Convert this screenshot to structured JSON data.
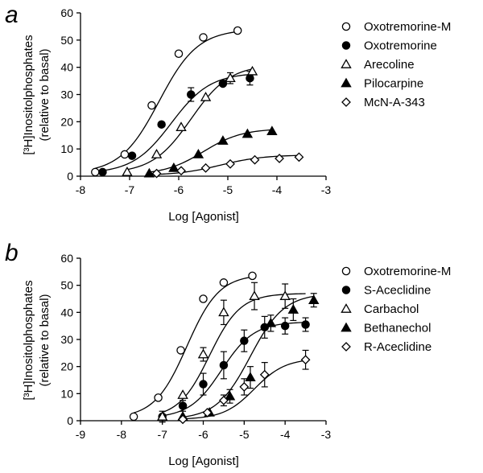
{
  "chart_data": [
    {
      "type": "scatter",
      "panel_label": "a",
      "xlabel": "Log [Agonist]",
      "ylabel_line1": "[³H]Inositolphosphates",
      "ylabel_line2": "(relative to basal)",
      "xlim": [
        -8,
        -3
      ],
      "ylim": [
        0,
        60
      ],
      "xticks": [
        -8,
        -7,
        -6,
        -5,
        -4,
        -3
      ],
      "yticks": [
        0,
        10,
        20,
        30,
        40,
        50,
        60
      ],
      "legend_position": "right",
      "series": [
        {
          "name": "Oxotremorine-M",
          "marker": "circle-open",
          "fit": {
            "bottom": 1,
            "top": 54,
            "logEC50": -6.4,
            "hill": 1.1,
            "xmin": -7.7,
            "xmax": -4.8
          },
          "points": [
            {
              "x": -7.7,
              "y": 1.5
            },
            {
              "x": -7.1,
              "y": 8
            },
            {
              "x": -6.55,
              "y": 26
            },
            {
              "x": -6.0,
              "y": 45
            },
            {
              "x": -5.5,
              "y": 51
            },
            {
              "x": -4.8,
              "y": 53.5
            }
          ]
        },
        {
          "name": "Oxotremorine",
          "marker": "circle-filled",
          "fit": {
            "bottom": 1,
            "top": 38,
            "logEC50": -6.15,
            "hill": 1.1,
            "xmin": -7.55,
            "xmax": -4.55
          },
          "points": [
            {
              "x": -7.55,
              "y": 1.5
            },
            {
              "x": -6.95,
              "y": 7.5
            },
            {
              "x": -6.35,
              "y": 19
            },
            {
              "x": -5.75,
              "y": 30,
              "err": 2.5
            },
            {
              "x": -5.1,
              "y": 34
            },
            {
              "x": -4.55,
              "y": 36,
              "err": 2.5
            }
          ]
        },
        {
          "name": "Arecoline",
          "marker": "triangle-open",
          "fit": {
            "bottom": 1,
            "top": 41,
            "logEC50": -5.75,
            "hill": 1.1,
            "xmin": -7.05,
            "xmax": -4.5
          },
          "points": [
            {
              "x": -7.05,
              "y": 1.5
            },
            {
              "x": -6.45,
              "y": 8
            },
            {
              "x": -5.95,
              "y": 18
            },
            {
              "x": -5.45,
              "y": 29
            },
            {
              "x": -4.95,
              "y": 36,
              "err": 2
            },
            {
              "x": -4.5,
              "y": 38.5
            }
          ]
        },
        {
          "name": "Pilocarpine",
          "marker": "triangle-filled",
          "fit": {
            "bottom": 0.5,
            "top": 17.5,
            "logEC50": -5.5,
            "hill": 1.1,
            "xmin": -6.6,
            "xmax": -4.1
          },
          "points": [
            {
              "x": -6.6,
              "y": 1
            },
            {
              "x": -6.1,
              "y": 3
            },
            {
              "x": -5.6,
              "y": 8
            },
            {
              "x": -5.1,
              "y": 13
            },
            {
              "x": -4.6,
              "y": 15.5
            },
            {
              "x": -4.1,
              "y": 16.5
            }
          ]
        },
        {
          "name": "McN-A-343",
          "marker": "diamond-open",
          "fit": {
            "bottom": 0.3,
            "top": 7.8,
            "logEC50": -5.15,
            "hill": 1.0,
            "xmin": -6.45,
            "xmax": -3.55
          },
          "points": [
            {
              "x": -6.45,
              "y": 1
            },
            {
              "x": -5.95,
              "y": 2
            },
            {
              "x": -5.45,
              "y": 3
            },
            {
              "x": -4.95,
              "y": 4.5
            },
            {
              "x": -4.45,
              "y": 6
            },
            {
              "x": -3.95,
              "y": 6.5
            },
            {
              "x": -3.55,
              "y": 7
            }
          ]
        }
      ]
    },
    {
      "type": "scatter",
      "panel_label": "b",
      "xlabel": "Log [Agonist]",
      "ylabel_line1": "[³H]Inositolphosphates",
      "ylabel_line2": "(relative to basal)",
      "xlim": [
        -9,
        -3
      ],
      "ylim": [
        0,
        60
      ],
      "xticks": [
        -9,
        -8,
        -7,
        -6,
        -5,
        -4,
        -3
      ],
      "yticks": [
        0,
        10,
        20,
        30,
        40,
        50,
        60
      ],
      "legend_position": "right",
      "series": [
        {
          "name": "Oxotremorine-M",
          "marker": "circle-open",
          "fit": {
            "bottom": 1,
            "top": 54,
            "logEC50": -6.4,
            "hill": 1.1,
            "xmin": -7.7,
            "xmax": -4.8
          },
          "points": [
            {
              "x": -7.7,
              "y": 1.5
            },
            {
              "x": -7.1,
              "y": 8.5
            },
            {
              "x": -6.55,
              "y": 26
            },
            {
              "x": -6.0,
              "y": 45
            },
            {
              "x": -5.5,
              "y": 51
            },
            {
              "x": -4.8,
              "y": 53.5
            }
          ]
        },
        {
          "name": "S-Aceclidine",
          "marker": "circle-filled",
          "fit": {
            "bottom": 1,
            "top": 36.5,
            "logEC50": -5.55,
            "hill": 1.1,
            "xmin": -7.0,
            "xmax": -3.5
          },
          "points": [
            {
              "x": -7.0,
              "y": 1.5,
              "err": 2
            },
            {
              "x": -6.5,
              "y": 5.5,
              "err": 2
            },
            {
              "x": -6.0,
              "y": 13.5,
              "err": 4
            },
            {
              "x": -5.5,
              "y": 20.5,
              "err": 5
            },
            {
              "x": -5.0,
              "y": 29.5,
              "err": 4
            },
            {
              "x": -4.5,
              "y": 34.5,
              "err": 4
            },
            {
              "x": -4.0,
              "y": 35,
              "err": 3
            },
            {
              "x": -3.5,
              "y": 35.5,
              "err": 2.5
            }
          ]
        },
        {
          "name": "Carbachol",
          "marker": "triangle-open",
          "fit": {
            "bottom": 1,
            "top": 47,
            "logEC50": -5.85,
            "hill": 1.15,
            "xmin": -7.0,
            "xmax": -3.5
          },
          "points": [
            {
              "x": -7.0,
              "y": 1.5
            },
            {
              "x": -6.5,
              "y": 9.5
            },
            {
              "x": -6.0,
              "y": 24.5,
              "err": 2.5
            },
            {
              "x": -5.5,
              "y": 40,
              "err": 4.5
            },
            {
              "x": -4.75,
              "y": 46,
              "err": 5
            },
            {
              "x": -4.0,
              "y": 46,
              "err": 4.5
            }
          ]
        },
        {
          "name": "Bethanechol",
          "marker": "triangle-filled",
          "fit": {
            "bottom": 0.5,
            "top": 47,
            "logEC50": -4.85,
            "hill": 1.05,
            "xmin": -6.5,
            "xmax": -3.3
          },
          "points": [
            {
              "x": -6.5,
              "y": 1.5
            },
            {
              "x": -5.85,
              "y": 3
            },
            {
              "x": -5.35,
              "y": 9,
              "err": 2.5
            },
            {
              "x": -4.85,
              "y": 16,
              "err": 4
            },
            {
              "x": -4.35,
              "y": 36,
              "err": 3
            },
            {
              "x": -3.8,
              "y": 41,
              "err": 4
            },
            {
              "x": -3.3,
              "y": 44.5,
              "err": 2.5
            }
          ]
        },
        {
          "name": "R-Aceclidine",
          "marker": "diamond-open",
          "fit": {
            "bottom": 0.5,
            "top": 23,
            "logEC50": -4.75,
            "hill": 1.15,
            "xmin": -6.5,
            "xmax": -3.5
          },
          "points": [
            {
              "x": -6.5,
              "y": 0.5
            },
            {
              "x": -5.9,
              "y": 3
            },
            {
              "x": -5.5,
              "y": 7.5,
              "err": 2
            },
            {
              "x": -5.0,
              "y": 12.5,
              "err": 3
            },
            {
              "x": -4.5,
              "y": 17,
              "err": 4.5
            },
            {
              "x": -3.5,
              "y": 22.5,
              "err": 3.5
            }
          ]
        }
      ]
    }
  ]
}
